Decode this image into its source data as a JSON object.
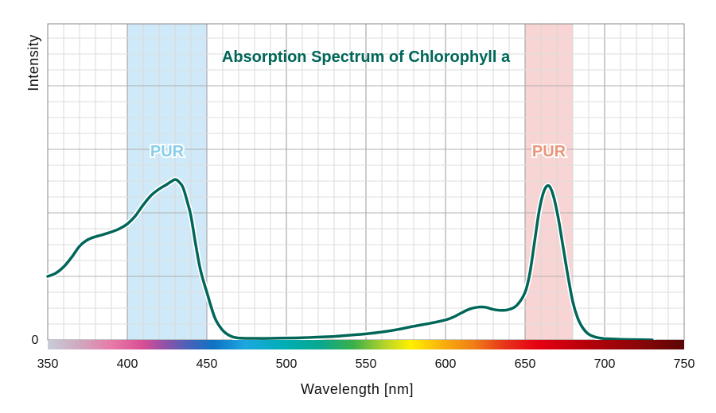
{
  "chart_data": {
    "type": "line",
    "title": "Absorption Spectrum of Chlorophyll a",
    "xlabel": "Wavelength [nm]",
    "ylabel": "Intensity",
    "xlim": [
      350,
      750
    ],
    "x_ticks": [
      "350",
      "400",
      "450",
      "500",
      "550",
      "600",
      "650",
      "700",
      "750"
    ],
    "y_ticks": [
      "0"
    ],
    "grid": true,
    "colors": {
      "line": "#006659",
      "title": "#006659",
      "band_blue": "#cfe9f8",
      "band_red": "#f8d4d4",
      "band_blue_text": "#87ceeb",
      "band_red_text": "#e9967a"
    },
    "bands": [
      {
        "label": "PUR",
        "x_start": 400,
        "x_end": 450,
        "color": "blue"
      },
      {
        "label": "PUR",
        "x_start": 650,
        "x_end": 680,
        "color": "red"
      }
    ],
    "series": [
      {
        "x": [
          350,
          355,
          360,
          365,
          370,
          375,
          380,
          385,
          390,
          395,
          400,
          405,
          410,
          415,
          420,
          425,
          428,
          430,
          432,
          435,
          438,
          440,
          443,
          446,
          450,
          455,
          460,
          465,
          470,
          480,
          490,
          500,
          510,
          520,
          530,
          540,
          550,
          560,
          570,
          580,
          590,
          600,
          605,
          610,
          615,
          620,
          625,
          630,
          635,
          640,
          645,
          650,
          653,
          656,
          659,
          662,
          665,
          668,
          671,
          674,
          677,
          680,
          683,
          686,
          690,
          695,
          700,
          710,
          720,
          730
        ],
        "values": [
          0.2,
          0.21,
          0.23,
          0.26,
          0.295,
          0.315,
          0.325,
          0.332,
          0.34,
          0.35,
          0.365,
          0.39,
          0.425,
          0.455,
          0.475,
          0.49,
          0.5,
          0.505,
          0.5,
          0.48,
          0.43,
          0.39,
          0.3,
          0.22,
          0.15,
          0.07,
          0.03,
          0.012,
          0.006,
          0.005,
          0.005,
          0.006,
          0.007,
          0.009,
          0.011,
          0.015,
          0.019,
          0.025,
          0.033,
          0.043,
          0.052,
          0.063,
          0.072,
          0.085,
          0.097,
          0.103,
          0.103,
          0.096,
          0.093,
          0.096,
          0.11,
          0.15,
          0.21,
          0.31,
          0.41,
          0.47,
          0.485,
          0.45,
          0.38,
          0.29,
          0.2,
          0.12,
          0.07,
          0.04,
          0.018,
          0.008,
          0.004,
          0.002,
          0.001,
          0.0
        ]
      }
    ]
  }
}
